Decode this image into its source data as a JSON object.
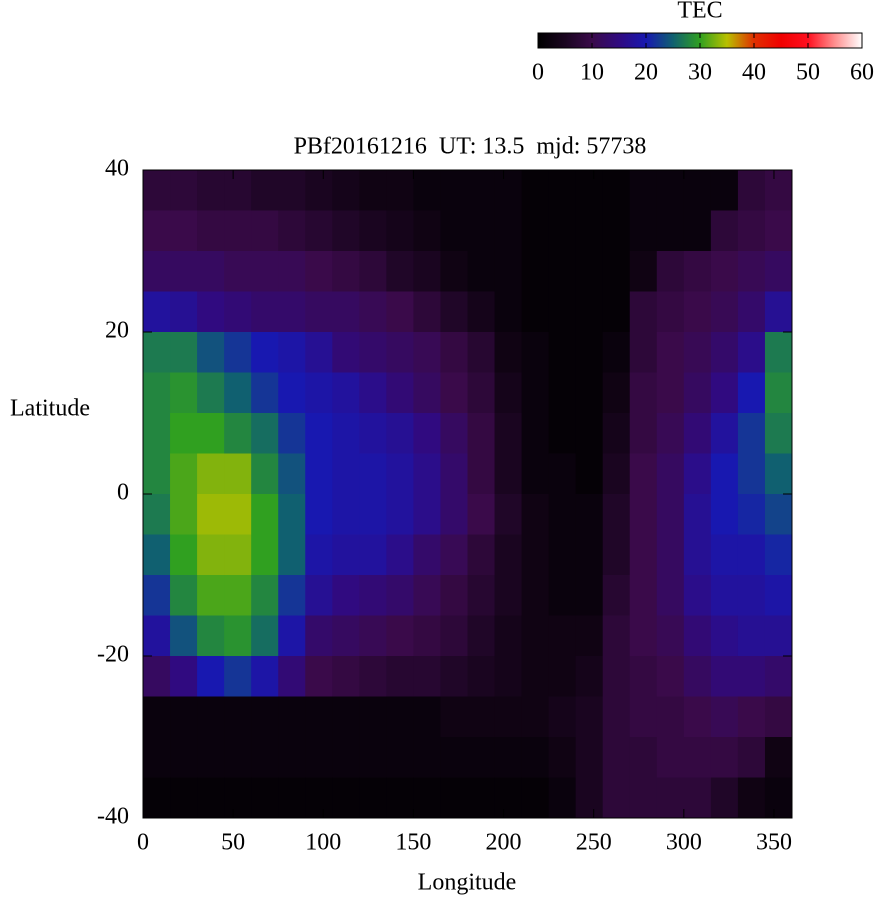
{
  "chart_data": {
    "type": "heatmap",
    "title": "PBf20161216  UT: 13.5  mjd: 57738",
    "x_label": "Longitude",
    "y_label": "Latitude",
    "colorbar_label": "TEC",
    "xlim": [
      0,
      360
    ],
    "ylim": [
      -40,
      40
    ],
    "zlim": [
      0,
      60
    ],
    "xticks": [
      0,
      50,
      100,
      150,
      200,
      250,
      300,
      350
    ],
    "yticks": [
      -40,
      -20,
      0,
      20,
      40
    ],
    "zticks": [
      0,
      10,
      20,
      30,
      40,
      50,
      60
    ],
    "colormap": [
      "#000000",
      "#1a0520",
      "#3a0a4a",
      "#300a80",
      "#1818b0",
      "#106070",
      "#30a020",
      "#b8c000",
      "#e03000",
      "#f00000",
      "#ff1020",
      "#ff9090",
      "#ffffff"
    ],
    "x": [
      7.5,
      22.5,
      37.5,
      52.5,
      67.5,
      82.5,
      97.5,
      112.5,
      127.5,
      142.5,
      157.5,
      172.5,
      187.5,
      202.5,
      217.5,
      232.5,
      247.5,
      262.5,
      277.5,
      292.5,
      307.5,
      322.5,
      337.5,
      352.5
    ],
    "y": [
      37.5,
      32.5,
      27.5,
      22.5,
      17.5,
      12.5,
      7.5,
      2.5,
      -2.5,
      -7.5,
      -12.5,
      -17.5,
      -22.5,
      -27.5,
      -32.5,
      -37.5
    ],
    "z": [
      [
        8,
        8,
        7,
        7,
        6,
        6,
        5,
        4,
        3,
        3,
        2,
        2,
        2,
        2,
        1,
        1,
        1,
        1,
        2,
        2,
        2,
        2,
        8,
        9
      ],
      [
        10,
        10,
        9,
        9,
        9,
        8,
        7,
        6,
        5,
        4,
        3,
        2,
        2,
        2,
        1,
        1,
        1,
        1,
        2,
        2,
        2,
        8,
        9,
        10
      ],
      [
        12,
        12,
        12,
        11,
        11,
        11,
        10,
        9,
        8,
        6,
        5,
        3,
        2,
        2,
        1,
        1,
        1,
        1,
        3,
        8,
        9,
        10,
        11,
        12
      ],
      [
        18,
        17,
        15,
        14,
        13,
        13,
        12,
        12,
        11,
        10,
        8,
        6,
        4,
        2,
        1,
        1,
        1,
        1,
        8,
        9,
        10,
        11,
        13,
        17
      ],
      [
        27,
        27,
        24,
        22,
        20,
        19,
        17,
        14,
        13,
        12,
        11,
        9,
        7,
        3,
        2,
        1,
        1,
        2,
        8,
        10,
        11,
        13,
        16,
        27
      ],
      [
        28,
        29,
        27,
        25,
        22,
        20,
        19,
        18,
        16,
        14,
        12,
        10,
        8,
        4,
        2,
        1,
        1,
        3,
        9,
        10,
        12,
        15,
        20,
        28
      ],
      [
        28,
        30,
        30,
        28,
        26,
        22,
        20,
        19,
        18,
        17,
        15,
        12,
        9,
        5,
        2,
        1,
        1,
        4,
        9,
        11,
        14,
        18,
        22,
        27
      ],
      [
        28,
        31,
        33,
        33,
        28,
        24,
        20,
        19,
        19,
        18,
        16,
        13,
        9,
        5,
        2,
        2,
        1,
        5,
        10,
        12,
        16,
        20,
        22,
        25
      ],
      [
        27,
        31,
        34,
        34,
        30,
        25,
        20,
        19,
        19,
        18,
        16,
        13,
        10,
        6,
        3,
        2,
        2,
        6,
        10,
        12,
        17,
        20,
        21,
        23
      ],
      [
        25,
        30,
        33,
        33,
        30,
        25,
        19,
        18,
        18,
        16,
        13,
        11,
        8,
        5,
        3,
        2,
        2,
        6,
        10,
        12,
        17,
        19,
        19,
        21
      ],
      [
        22,
        28,
        31,
        31,
        28,
        22,
        17,
        15,
        14,
        13,
        11,
        9,
        7,
        5,
        3,
        2,
        2,
        7,
        10,
        12,
        16,
        18,
        18,
        19
      ],
      [
        18,
        24,
        28,
        29,
        26,
        19,
        13,
        12,
        11,
        10,
        9,
        8,
        6,
        4,
        3,
        3,
        3,
        8,
        10,
        11,
        14,
        16,
        17,
        17
      ],
      [
        12,
        15,
        20,
        22,
        19,
        14,
        10,
        9,
        8,
        7,
        7,
        6,
        5,
        4,
        3,
        3,
        4,
        8,
        9,
        10,
        12,
        14,
        14,
        13
      ],
      [
        2,
        2,
        2,
        2,
        2,
        2,
        2,
        2,
        2,
        2,
        2,
        3,
        3,
        3,
        3,
        4,
        5,
        8,
        9,
        9,
        10,
        11,
        10,
        9
      ],
      [
        2,
        2,
        2,
        2,
        2,
        2,
        2,
        2,
        2,
        2,
        2,
        2,
        2,
        2,
        2,
        3,
        5,
        8,
        8,
        9,
        9,
        9,
        8,
        3
      ],
      [
        1,
        1,
        1,
        1,
        1,
        1,
        1,
        1,
        1,
        1,
        1,
        1,
        1,
        1,
        1,
        2,
        5,
        8,
        8,
        8,
        8,
        6,
        3,
        2
      ]
    ]
  }
}
